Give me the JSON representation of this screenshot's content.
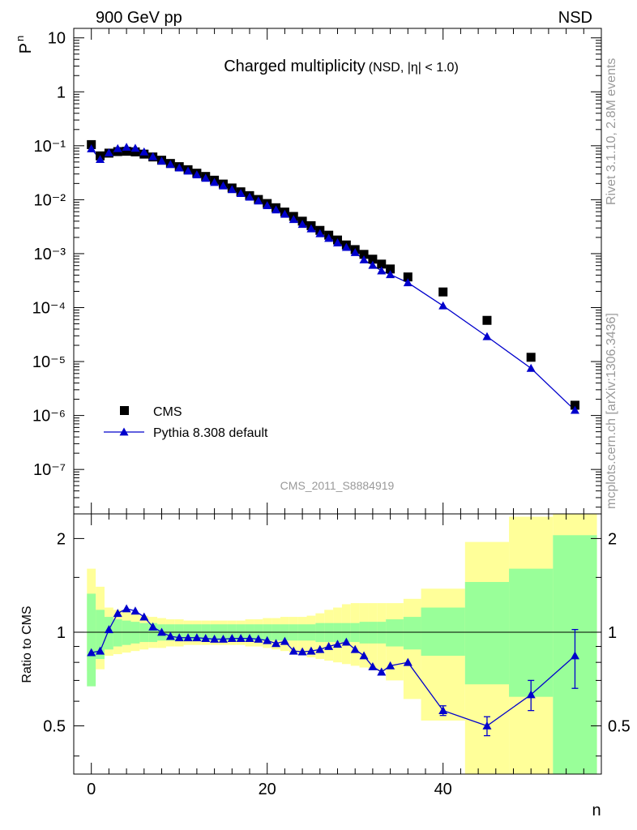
{
  "header": {
    "left": "900 GeV pp",
    "right": "NSD"
  },
  "side_text": {
    "rivet": "Rivet 3.1.10,  2.8M events",
    "source": "mcplots.cern.ch [arXiv:1306.3436]"
  },
  "chart_data": [
    {
      "type": "scatter",
      "title": "Charged multiplicity",
      "title_suffix": "(NSD, |η| < 1.0)",
      "ylabel": "P",
      "ylabel_sub": "n",
      "xlabel": "n",
      "watermark": "CMS_2011_S8884919",
      "y_scale": "log",
      "xlim": [
        -2,
        58
      ],
      "ylim": [
        1.5e-08,
        15
      ],
      "y_tick_labels": [
        "10⁻⁷",
        "10⁻⁶",
        "10⁻⁵",
        "10⁻⁴",
        "10⁻³",
        "10⁻²",
        "10⁻¹",
        "1",
        "10"
      ],
      "legend_position": "bottom-left",
      "series": [
        {
          "name": "CMS",
          "marker": "square",
          "color": "#000000",
          "x": [
            0,
            1,
            2,
            3,
            4,
            5,
            6,
            7,
            8,
            9,
            10,
            11,
            12,
            13,
            14,
            15,
            16,
            17,
            18,
            19,
            20,
            21,
            22,
            23,
            24,
            25,
            26,
            27,
            28,
            29,
            30,
            31,
            32,
            33,
            34,
            36,
            40,
            45,
            50,
            55
          ],
          "y": [
            0.105,
            0.065,
            0.073,
            0.078,
            0.079,
            0.077,
            0.07,
            0.062,
            0.054,
            0.047,
            0.041,
            0.036,
            0.031,
            0.027,
            0.023,
            0.0195,
            0.0165,
            0.014,
            0.0119,
            0.0101,
            0.0085,
            0.0071,
            0.0059,
            0.0049,
            0.004,
            0.0033,
            0.0027,
            0.0022,
            0.00179,
            0.00145,
            0.00119,
            0.00097,
            0.00079,
            0.00064,
            0.00052,
            0.00037,
            0.000195,
            5.8e-05,
            1.2e-05,
            1.55e-06
          ]
        },
        {
          "name": "Pythia 8.308 default",
          "marker": "triangle",
          "color": "#0000cc",
          "x": [
            0,
            1,
            2,
            3,
            4,
            5,
            6,
            7,
            8,
            9,
            10,
            11,
            12,
            13,
            14,
            15,
            16,
            17,
            18,
            19,
            20,
            21,
            22,
            23,
            24,
            25,
            26,
            27,
            28,
            29,
            30,
            31,
            32,
            33,
            34,
            36,
            40,
            45,
            50,
            55
          ],
          "y": [
            0.088,
            0.056,
            0.074,
            0.089,
            0.094,
            0.09,
            0.077,
            0.063,
            0.052,
            0.045,
            0.039,
            0.034,
            0.029,
            0.025,
            0.021,
            0.0181,
            0.0154,
            0.0131,
            0.0112,
            0.0095,
            0.0078,
            0.0065,
            0.0054,
            0.0043,
            0.0035,
            0.0029,
            0.00235,
            0.00193,
            0.00159,
            0.00131,
            0.00105,
            0.00077,
            0.00061,
            0.00048,
            0.00041,
            0.00029,
            0.000108,
            2.9e-05,
            7.5e-06,
            1.25e-06
          ]
        }
      ]
    },
    {
      "type": "line",
      "ylabel": "Ratio to CMS",
      "xlabel": "n",
      "y_scale": "log",
      "xlim": [
        -2,
        58
      ],
      "ylim": [
        0.35,
        2.4
      ],
      "y_tick_labels": [
        "0.5",
        "1",
        "2"
      ],
      "x_tick_labels": [
        "0",
        "20",
        "40"
      ],
      "reference_line": 1,
      "bands": [
        {
          "name": "CMS uncertainty (inner)",
          "color": "#99ff99",
          "bins": [
            [
              -0.5,
              0.5,
              0.67,
              1.33
            ],
            [
              0.5,
              1.5,
              0.82,
              1.18
            ],
            [
              1.5,
              2.5,
              0.88,
              1.12
            ],
            [
              2.5,
              3.5,
              0.9,
              1.1
            ],
            [
              3.5,
              4.5,
              0.91,
              1.09
            ],
            [
              4.5,
              5.5,
              0.92,
              1.08
            ],
            [
              5.5,
              6.5,
              0.93,
              1.07
            ],
            [
              6.5,
              7.5,
              0.93,
              1.07
            ],
            [
              7.5,
              8.5,
              0.94,
              1.06
            ],
            [
              8.5,
              9.5,
              0.94,
              1.06
            ],
            [
              9.5,
              10.5,
              0.94,
              1.06
            ],
            [
              10.5,
              11.5,
              0.94,
              1.06
            ],
            [
              11.5,
              12.5,
              0.94,
              1.06
            ],
            [
              12.5,
              13.5,
              0.94,
              1.06
            ],
            [
              13.5,
              14.5,
              0.94,
              1.06
            ],
            [
              14.5,
              15.5,
              0.94,
              1.06
            ],
            [
              15.5,
              16.5,
              0.94,
              1.06
            ],
            [
              16.5,
              17.5,
              0.94,
              1.06
            ],
            [
              17.5,
              18.5,
              0.94,
              1.06
            ],
            [
              18.5,
              19.5,
              0.94,
              1.06
            ],
            [
              19.5,
              20.5,
              0.94,
              1.06
            ],
            [
              20.5,
              21.5,
              0.94,
              1.06
            ],
            [
              21.5,
              22.5,
              0.94,
              1.06
            ],
            [
              22.5,
              23.5,
              0.94,
              1.06
            ],
            [
              23.5,
              24.5,
              0.94,
              1.06
            ],
            [
              24.5,
              25.5,
              0.94,
              1.06
            ],
            [
              25.5,
              26.5,
              0.93,
              1.07
            ],
            [
              26.5,
              27.5,
              0.93,
              1.07
            ],
            [
              27.5,
              28.5,
              0.93,
              1.07
            ],
            [
              28.5,
              29.5,
              0.93,
              1.07
            ],
            [
              29.5,
              30.5,
              0.93,
              1.07
            ],
            [
              30.5,
              31.5,
              0.92,
              1.08
            ],
            [
              31.5,
              32.5,
              0.92,
              1.08
            ],
            [
              32.5,
              33.5,
              0.92,
              1.08
            ],
            [
              33.5,
              35.5,
              0.9,
              1.1
            ],
            [
              35.5,
              37.5,
              0.88,
              1.12
            ],
            [
              37.5,
              42.5,
              0.84,
              1.2
            ],
            [
              42.5,
              47.5,
              0.68,
              1.45
            ],
            [
              47.5,
              52.5,
              0.62,
              1.6
            ],
            [
              52.5,
              57.5,
              0.35,
              2.05
            ]
          ]
        },
        {
          "name": "CMS uncertainty (outer)",
          "color": "#ffff99",
          "bins": [
            [
              -0.5,
              0.5,
              0.75,
              1.6
            ],
            [
              0.5,
              1.5,
              0.76,
              1.4
            ],
            [
              1.5,
              2.5,
              0.84,
              1.2
            ],
            [
              2.5,
              3.5,
              0.85,
              1.18
            ],
            [
              3.5,
              4.5,
              0.86,
              1.16
            ],
            [
              4.5,
              5.5,
              0.87,
              1.15
            ],
            [
              5.5,
              6.5,
              0.88,
              1.13
            ],
            [
              6.5,
              7.5,
              0.89,
              1.12
            ],
            [
              7.5,
              8.5,
              0.89,
              1.11
            ],
            [
              8.5,
              9.5,
              0.9,
              1.1
            ],
            [
              9.5,
              10.5,
              0.9,
              1.1
            ],
            [
              10.5,
              11.5,
              0.91,
              1.09
            ],
            [
              11.5,
              12.5,
              0.91,
              1.09
            ],
            [
              12.5,
              13.5,
              0.91,
              1.09
            ],
            [
              13.5,
              14.5,
              0.91,
              1.09
            ],
            [
              14.5,
              15.5,
              0.91,
              1.09
            ],
            [
              15.5,
              16.5,
              0.91,
              1.09
            ],
            [
              16.5,
              17.5,
              0.91,
              1.09
            ],
            [
              17.5,
              18.5,
              0.9,
              1.1
            ],
            [
              18.5,
              19.5,
              0.9,
              1.1
            ],
            [
              19.5,
              20.5,
              0.89,
              1.11
            ],
            [
              20.5,
              21.5,
              0.88,
              1.11
            ],
            [
              21.5,
              22.5,
              0.87,
              1.12
            ],
            [
              22.5,
              23.5,
              0.86,
              1.12
            ],
            [
              23.5,
              24.5,
              0.85,
              1.12
            ],
            [
              24.5,
              25.5,
              0.83,
              1.13
            ],
            [
              25.5,
              26.5,
              0.82,
              1.15
            ],
            [
              26.5,
              27.5,
              0.81,
              1.18
            ],
            [
              27.5,
              28.5,
              0.8,
              1.2
            ],
            [
              28.5,
              29.5,
              0.79,
              1.23
            ],
            [
              29.5,
              30.5,
              0.78,
              1.24
            ],
            [
              30.5,
              31.5,
              0.77,
              1.24
            ],
            [
              31.5,
              32.5,
              0.76,
              1.24
            ],
            [
              32.5,
              33.5,
              0.75,
              1.24
            ],
            [
              33.5,
              35.5,
              0.7,
              1.24
            ],
            [
              35.5,
              37.5,
              0.61,
              1.28
            ],
            [
              37.5,
              42.5,
              0.52,
              1.38
            ],
            [
              42.5,
              47.5,
              0.35,
              1.95
            ],
            [
              47.5,
              52.5,
              0.35,
              2.35
            ],
            [
              52.5,
              57.5,
              0.35,
              2.4
            ]
          ]
        }
      ],
      "series": [
        {
          "name": "Pythia 8.308 default",
          "color": "#0000cc",
          "x": [
            0,
            1,
            2,
            3,
            4,
            5,
            6,
            7,
            8,
            9,
            10,
            11,
            12,
            13,
            14,
            15,
            16,
            17,
            18,
            19,
            20,
            21,
            22,
            23,
            24,
            25,
            26,
            27,
            28,
            29,
            30,
            31,
            32,
            33,
            34,
            36,
            40,
            45,
            50,
            55
          ],
          "y": [
            0.86,
            0.87,
            1.02,
            1.15,
            1.19,
            1.17,
            1.12,
            1.04,
            1.0,
            0.97,
            0.96,
            0.96,
            0.96,
            0.955,
            0.95,
            0.95,
            0.955,
            0.955,
            0.955,
            0.95,
            0.94,
            0.92,
            0.935,
            0.87,
            0.865,
            0.87,
            0.88,
            0.9,
            0.915,
            0.93,
            0.88,
            0.84,
            0.775,
            0.745,
            0.78,
            0.8,
            0.56,
            0.5,
            0.63,
            0.84
          ],
          "err": [
            0.01,
            0.01,
            0.01,
            0.01,
            0.01,
            0.01,
            0.01,
            0.01,
            0.01,
            0.01,
            0.01,
            0.01,
            0.01,
            0.01,
            0.01,
            0.01,
            0.01,
            0.01,
            0.01,
            0.01,
            0.01,
            0.01,
            0.01,
            0.01,
            0.01,
            0.01,
            0.01,
            0.01,
            0.01,
            0.01,
            0.01,
            0.01,
            0.01,
            0.012,
            0.012,
            0.015,
            0.02,
            0.035,
            0.07,
            0.18
          ]
        }
      ]
    }
  ]
}
